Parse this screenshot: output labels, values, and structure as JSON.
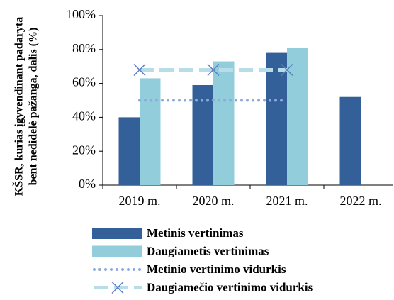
{
  "chart_data": {
    "type": "bar",
    "ylabel": [
      "KŠSR, kurias įgyvendinant padaryta",
      "bent nedidelė pažanga, dalis (%)"
    ],
    "categories": [
      "2019 m.",
      "2020 m.",
      "2021 m.",
      "2022 m."
    ],
    "series": [
      {
        "name": "Metinis vertinimas",
        "type": "bar",
        "color": "#34609a",
        "values": [
          40,
          59,
          78,
          52
        ]
      },
      {
        "name": "Daugiametis vertinimas",
        "type": "bar",
        "color": "#92cddc",
        "values": [
          63,
          73,
          81,
          null
        ]
      },
      {
        "name": "Metinio vertinimo vidurkis",
        "type": "line",
        "style": "dotted",
        "color": "#8eaadb",
        "values": [
          50,
          50,
          50,
          null
        ]
      },
      {
        "name": "Daugiamečio vertinimo vidurkis",
        "type": "line",
        "style": "dashed",
        "marker": "x",
        "color": "#b7dee8",
        "marker_color": "#5b7fbf",
        "values": [
          68,
          68,
          68,
          null
        ]
      }
    ],
    "ylim": [
      0,
      100
    ],
    "yticks": [
      {
        "value": 0,
        "label": "0%"
      },
      {
        "value": 20,
        "label": "20%"
      },
      {
        "value": 40,
        "label": "40%"
      },
      {
        "value": 60,
        "label": "60%"
      },
      {
        "value": 80,
        "label": "80%"
      },
      {
        "value": 100,
        "label": "100%"
      }
    ]
  }
}
